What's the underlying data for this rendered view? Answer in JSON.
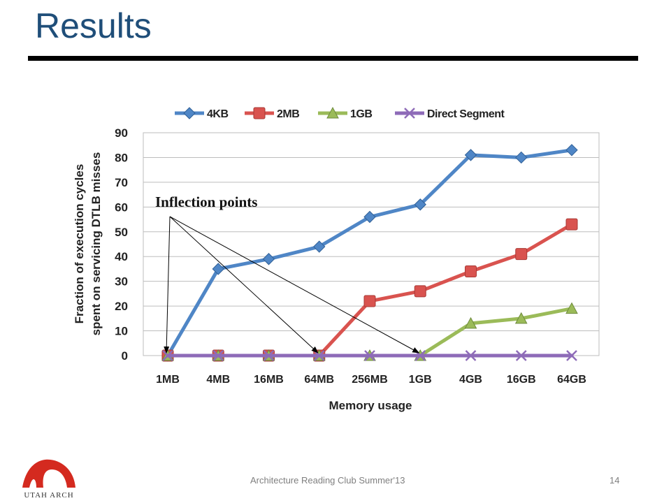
{
  "slide": {
    "title": "Results",
    "footer": "Architecture Reading Club Summer'13",
    "page_number": "14",
    "logo_text": "UTAH ARCH"
  },
  "colors": {
    "title": "#1f4e79",
    "series_4kb": "#4f86c6",
    "series_2mb": "#d9534f",
    "series_1gb": "#9bbb59",
    "series_direct": "#8e6bb8",
    "logo": "#d42a1f"
  },
  "chart_data": {
    "type": "line",
    "categories": [
      "1MB",
      "4MB",
      "16MB",
      "64MB",
      "256MB",
      "1GB",
      "4GB",
      "16GB",
      "64GB"
    ],
    "series": [
      {
        "name": "4KB",
        "marker": "diamond",
        "values": [
          0,
          35,
          39,
          44,
          56,
          61,
          81,
          80,
          83
        ]
      },
      {
        "name": "2MB",
        "marker": "square",
        "values": [
          0,
          0,
          0,
          0,
          22,
          26,
          34,
          41,
          53
        ]
      },
      {
        "name": "1GB",
        "marker": "triangle",
        "values": [
          0,
          0,
          0,
          0,
          0,
          0,
          13,
          15,
          19
        ]
      },
      {
        "name": "Direct Segment",
        "marker": "x",
        "values": [
          0,
          0,
          0,
          0,
          0,
          0,
          0,
          0,
          0
        ]
      }
    ],
    "xlabel": "Memory usage",
    "ylabel": "Fraction of execution cycles spent on servicing DTLB misses",
    "ylabel_lines": [
      "Fraction of execution cycles",
      "spent on servicing DTLB misses"
    ],
    "ylim": [
      0,
      90
    ],
    "yticks": [
      0,
      10,
      20,
      30,
      40,
      50,
      60,
      70,
      80,
      90
    ],
    "grid": true,
    "legend": "top",
    "annotation": {
      "text": "Inflection points",
      "targets": [
        "1MB",
        "64MB",
        "1GB"
      ]
    }
  }
}
